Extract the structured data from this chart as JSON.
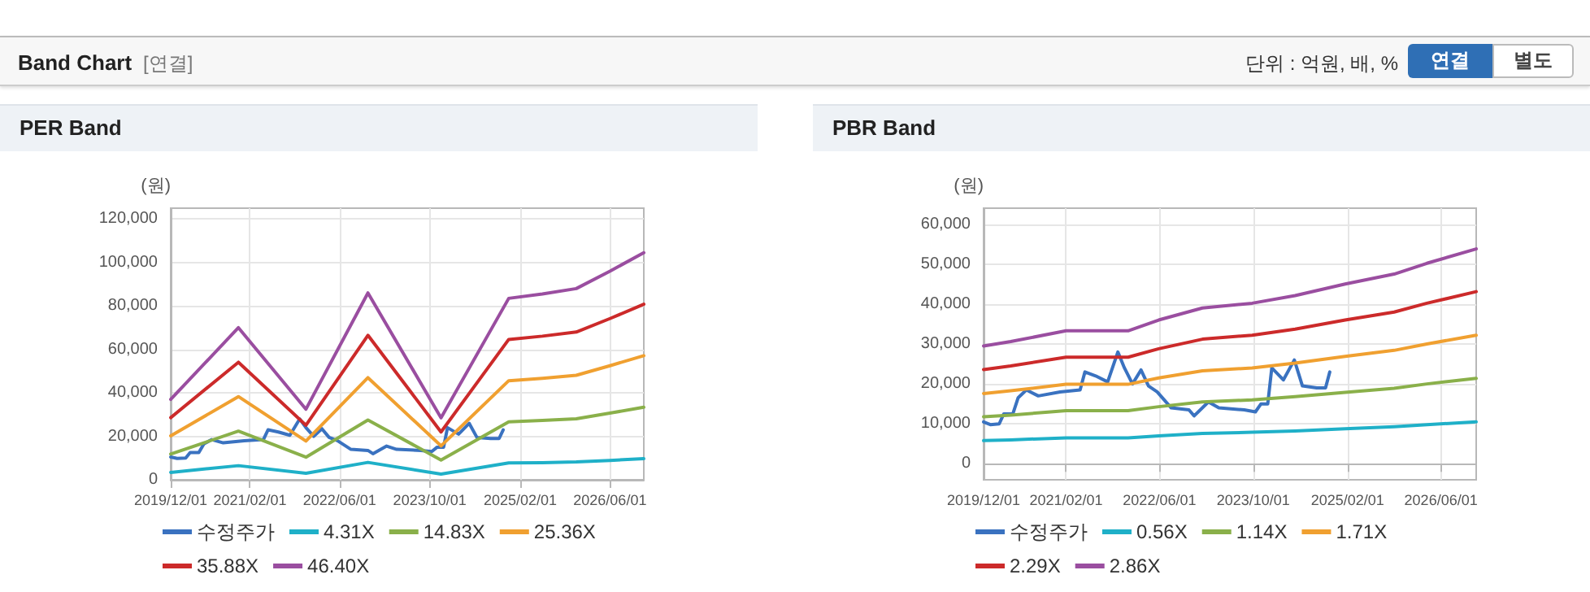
{
  "chart_data": [
    {
      "type": "line",
      "title": "PER Band",
      "ylabel": "(원)",
      "annotations": [
        "Band Chart",
        "[연결]",
        "단위 : 억원, 배, %",
        "연결",
        "별도"
      ],
      "grid": true,
      "legend": "bottom",
      "marker": "none",
      "line_style": "solid",
      "xlim": [
        "2019-12-01",
        "2026-12-01"
      ],
      "xticks": [
        {
          "value": "2019-12-01",
          "label": "2019/12/01"
        },
        {
          "value": "2021-02-01",
          "label": "2021/02/01"
        },
        {
          "value": "2022-06-01",
          "label": "2022/06/01"
        },
        {
          "value": "2023-10-01",
          "label": "2023/10/01"
        },
        {
          "value": "2025-02-01",
          "label": "2025/02/01"
        },
        {
          "value": "2026-06-01",
          "label": "2026/06/01"
        }
      ],
      "ylim": [
        0,
        125000
      ],
      "yticks": [
        0,
        {
          "value": 20000,
          "label": "20,000"
        },
        {
          "value": 40000,
          "label": "40,000"
        },
        {
          "value": 60000,
          "label": "60,000"
        },
        {
          "value": 80000,
          "label": "80,000"
        },
        {
          "value": 100000,
          "label": "100,000"
        },
        {
          "value": 120000,
          "label": "120,000"
        }
      ],
      "series": [
        {
          "name": "수정주가",
          "color": "#3a72c0",
          "x": [
            "2019-12-01",
            "2020-01-05",
            "2020-02-20",
            "2020-03-15",
            "2020-05-01",
            "2020-05-28",
            "2020-07-10",
            "2020-09-10",
            "2021-01-01",
            "2021-04-15",
            "2021-05-10",
            "2021-07-05",
            "2021-09-05",
            "2021-10-28",
            "2021-12-01",
            "2022-01-12",
            "2022-02-25",
            "2022-04-05",
            "2022-05-20",
            "2022-08-01",
            "2022-11-01",
            "2022-11-28",
            "2023-02-10",
            "2023-04-05",
            "2023-08-15",
            "2023-10-12",
            "2023-11-10",
            "2023-12-15",
            "2024-01-05",
            "2024-03-05",
            "2024-05-01",
            "2024-06-12",
            "2024-08-25",
            "2024-10-10",
            "2024-11-01"
          ],
          "values": [
            10500,
            9800,
            10000,
            12500,
            12500,
            16500,
            18500,
            17000,
            18000,
            18500,
            23000,
            22000,
            20500,
            28000,
            24000,
            20000,
            23500,
            19500,
            18000,
            14000,
            13500,
            12000,
            15500,
            14000,
            13500,
            13000,
            15000,
            15000,
            24000,
            21000,
            26000,
            19500,
            19000,
            19000,
            23000
          ]
        },
        {
          "name": "4.31X",
          "color": "#1fb0c8",
          "x": [
            "2019-12-01",
            "2020-12-01",
            "2021-12-01",
            "2022-11-01",
            "2023-12-01",
            "2024-12-01",
            "2025-06-01",
            "2025-12-01",
            "2026-06-01",
            "2026-12-01"
          ],
          "values": [
            3400,
            6500,
            3000,
            8000,
            2600,
            7800,
            7900,
            8200,
            8900,
            9700
          ]
        },
        {
          "name": "14.83X",
          "color": "#8ab04a",
          "x": [
            "2019-12-01",
            "2020-12-01",
            "2021-12-01",
            "2022-11-01",
            "2023-12-01",
            "2024-12-01",
            "2025-06-01",
            "2025-12-01",
            "2026-06-01",
            "2026-12-01"
          ],
          "values": [
            11800,
            22400,
            10400,
            27500,
            9100,
            26700,
            27300,
            28100,
            30700,
            33400
          ]
        },
        {
          "name": "25.36X",
          "color": "#f0a030",
          "x": [
            "2019-12-01",
            "2020-12-01",
            "2021-12-01",
            "2022-11-01",
            "2023-12-01",
            "2024-12-01",
            "2025-06-01",
            "2025-12-01",
            "2026-06-01",
            "2026-12-01"
          ],
          "values": [
            20200,
            38300,
            17800,
            47000,
            15600,
            45600,
            46700,
            48100,
            52500,
            57100
          ]
        },
        {
          "name": "35.88X",
          "color": "#cc2a2a",
          "x": [
            "2019-12-01",
            "2020-12-01",
            "2021-12-01",
            "2022-11-01",
            "2023-12-01",
            "2024-12-01",
            "2025-06-01",
            "2025-12-01",
            "2026-06-01",
            "2026-12-01"
          ],
          "values": [
            28600,
            54100,
            25100,
            66500,
            22000,
            64600,
            66100,
            68000,
            74200,
            80800
          ]
        },
        {
          "name": "46.40X",
          "color": "#9a4ea0",
          "x": [
            "2019-12-01",
            "2020-12-01",
            "2021-12-01",
            "2022-11-01",
            "2023-12-01",
            "2024-12-01",
            "2025-06-01",
            "2025-12-01",
            "2026-06-01",
            "2026-12-01"
          ],
          "values": [
            37000,
            70000,
            32500,
            86000,
            28500,
            83500,
            85500,
            88000,
            96000,
            104500
          ]
        }
      ]
    },
    {
      "type": "line",
      "title": "PBR Band",
      "ylabel": "(원)",
      "grid": true,
      "legend": "bottom",
      "marker": "none",
      "line_style": "solid",
      "xlim": [
        "2019-12-01",
        "2026-12-01"
      ],
      "xticks": [
        {
          "value": "2019-12-01",
          "label": "2019/12/01"
        },
        {
          "value": "2021-02-01",
          "label": "2021/02/01"
        },
        {
          "value": "2022-06-01",
          "label": "2022/06/01"
        },
        {
          "value": "2023-10-01",
          "label": "2023/10/01"
        },
        {
          "value": "2025-02-01",
          "label": "2025/02/01"
        },
        {
          "value": "2026-06-01",
          "label": "2026/06/01"
        }
      ],
      "ylim": [
        -4000,
        64000
      ],
      "yticks": [
        0,
        {
          "value": 10000,
          "label": "10,000"
        },
        {
          "value": 20000,
          "label": "20,000"
        },
        {
          "value": 30000,
          "label": "30,000"
        },
        {
          "value": 40000,
          "label": "40,000"
        },
        {
          "value": 50000,
          "label": "50,000"
        },
        {
          "value": 60000,
          "label": "60,000"
        }
      ],
      "series": [
        {
          "name": "수정주가",
          "color": "#3a72c0",
          "x": [
            "2019-12-01",
            "2020-01-05",
            "2020-02-20",
            "2020-03-15",
            "2020-05-01",
            "2020-05-28",
            "2020-07-10",
            "2020-09-10",
            "2021-01-01",
            "2021-04-15",
            "2021-05-10",
            "2021-07-05",
            "2021-09-05",
            "2021-10-28",
            "2021-12-01",
            "2022-01-12",
            "2022-02-25",
            "2022-04-05",
            "2022-05-20",
            "2022-08-01",
            "2022-11-01",
            "2022-11-28",
            "2023-02-10",
            "2023-04-05",
            "2023-08-15",
            "2023-10-12",
            "2023-11-10",
            "2023-12-15",
            "2024-01-05",
            "2024-03-05",
            "2024-05-01",
            "2024-06-12",
            "2024-08-25",
            "2024-10-10",
            "2024-11-01"
          ],
          "values": [
            10500,
            9800,
            10000,
            12500,
            12500,
            16500,
            18500,
            17000,
            18000,
            18500,
            23000,
            22000,
            20500,
            28000,
            24000,
            20000,
            23500,
            19500,
            18000,
            14000,
            13500,
            12000,
            15500,
            14000,
            13500,
            13000,
            15000,
            15000,
            24000,
            21000,
            26000,
            19500,
            19000,
            19000,
            23000
          ]
        },
        {
          "name": "0.56X",
          "color": "#1fb0c8",
          "x": [
            "2019-12-01",
            "2020-04-20",
            "2021-02-01",
            "2021-12-20",
            "2022-05-28",
            "2023-01-10",
            "2023-09-25",
            "2024-05-05",
            "2025-01-20",
            "2025-10-01",
            "2026-03-20",
            "2026-12-01"
          ],
          "values": [
            5800,
            6000,
            6500,
            6500,
            7000,
            7600,
            7900,
            8200,
            8800,
            9300,
            9800,
            10500
          ]
        },
        {
          "name": "1.14X",
          "color": "#8ab04a",
          "x": [
            "2019-12-01",
            "2020-04-20",
            "2021-02-01",
            "2021-12-20",
            "2022-05-28",
            "2023-01-10",
            "2023-09-25",
            "2024-05-05",
            "2025-01-20",
            "2025-10-01",
            "2026-03-20",
            "2026-12-01"
          ],
          "values": [
            11800,
            12200,
            13300,
            13300,
            14300,
            15500,
            16000,
            16800,
            17900,
            18900,
            20000,
            21400
          ]
        },
        {
          "name": "1.71X",
          "color": "#f0a030",
          "x": [
            "2019-12-01",
            "2020-04-20",
            "2021-02-01",
            "2021-12-20",
            "2022-05-28",
            "2023-01-10",
            "2023-09-25",
            "2024-05-05",
            "2025-01-20",
            "2025-10-01",
            "2026-03-20",
            "2026-12-01"
          ],
          "values": [
            17600,
            18300,
            19900,
            19900,
            21500,
            23300,
            24000,
            25200,
            26900,
            28400,
            30000,
            32200
          ]
        },
        {
          "name": "2.29X",
          "color": "#cc2a2a",
          "x": [
            "2019-12-01",
            "2020-04-20",
            "2021-02-01",
            "2021-12-20",
            "2022-05-28",
            "2023-01-10",
            "2023-09-25",
            "2024-05-05",
            "2025-01-20",
            "2025-10-01",
            "2026-03-20",
            "2026-12-01"
          ],
          "values": [
            23600,
            24500,
            26700,
            26700,
            28800,
            31200,
            32200,
            33700,
            36000,
            38000,
            40200,
            43100
          ]
        },
        {
          "name": "2.86X",
          "color": "#9a4ea0",
          "x": [
            "2019-12-01",
            "2020-04-20",
            "2021-02-01",
            "2021-12-20",
            "2022-05-28",
            "2023-01-10",
            "2023-09-25",
            "2024-05-05",
            "2025-01-20",
            "2025-10-01",
            "2026-03-20",
            "2026-12-01"
          ],
          "values": [
            29500,
            30600,
            33300,
            33300,
            36000,
            39000,
            40200,
            42100,
            45000,
            47500,
            50200,
            53800
          ]
        }
      ]
    }
  ]
}
